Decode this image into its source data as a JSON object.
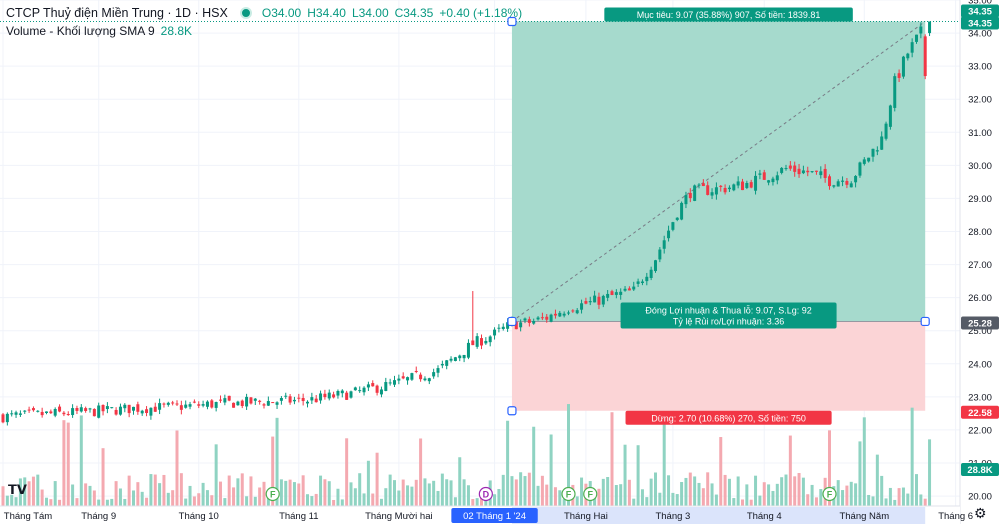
{
  "header": {
    "symbol_title": "CTCP Thuỷ điện Miền Trung · 1D · HSX",
    "ohlc": {
      "o": "O34.00",
      "h": "H34.40",
      "l": "L34.00",
      "c": "C34.35",
      "chg": "+0.40 (+1.18%)"
    },
    "volume_label": "Volume - Khối lượng SMA 9",
    "volume_value": "28.8K"
  },
  "colors": {
    "up": "#089981",
    "down": "#f23645",
    "vol_up": "#8fd3c2",
    "vol_down": "#f4a9b0",
    "profit_zone": "#a6dacd",
    "loss_zone": "#fbd4d6",
    "label_green": "#089981",
    "label_red": "#f23645",
    "axis_text": "#131722",
    "time_highlight": "#2962ff"
  },
  "icons": {
    "logo": "tradingview-logo-icon",
    "settings": "gear-icon"
  },
  "chart_data": {
    "type": "candlestick",
    "title": "CTCP Thuỷ điện Miền Trung · 1D · HSX",
    "ylim": [
      19.7,
      35.0
    ],
    "y_ticks": [
      "20.00",
      "21.00",
      "22.00",
      "23.00",
      "24.00",
      "25.00",
      "26.00",
      "27.00",
      "28.00",
      "29.00",
      "30.00",
      "31.00",
      "32.00",
      "33.00",
      "34.00",
      "35.00"
    ],
    "x_ticks": [
      "Tháng Tám",
      "Tháng 9",
      "Tháng 10",
      "Tháng 11",
      "Tháng Mười hai",
      "02 Tháng 1 '24",
      "Tháng Hai",
      "Tháng 3",
      "Tháng 4",
      "Tháng Năm",
      "Tháng 6"
    ],
    "x_tick_index": [
      0,
      22,
      45,
      68,
      91,
      113,
      134,
      154,
      175,
      198,
      219
    ],
    "highlight_x_tick": "02 Tháng 1 '24",
    "last_price": 34.35,
    "price_badges": [
      {
        "value": "34.35",
        "color": "#089981"
      },
      {
        "value": "34.35",
        "color": "#089981"
      },
      {
        "value": "25.28",
        "color": "#555b66"
      },
      {
        "value": "22.58",
        "color": "#f23645"
      },
      {
        "value": "28.8K",
        "color": "#089981"
      }
    ],
    "long_position": {
      "entry": 25.28,
      "target": 34.35,
      "stop": 22.58,
      "start_index": 117,
      "end_index": 212,
      "target_label": "Mục tiêu: 9.07 (35.88%) 907, Số tiền: 1839.81",
      "center_label_1": "Đóng Lợi nhuận & Thua lỗ: 9.07, S.Lg: 92",
      "center_label_2": "Tỷ lệ Rủi ro/Lợi nhuận: 3.36",
      "stop_label": "Dừng: 2.70 (10.68%) 270, Số tiền: 750"
    },
    "close_path": [
      [
        0,
        22.4
      ],
      [
        10,
        22.48
      ],
      [
        20,
        22.55
      ],
      [
        30,
        22.65
      ],
      [
        40,
        22.7
      ],
      [
        50,
        22.8
      ],
      [
        60,
        22.85
      ],
      [
        70,
        22.9
      ],
      [
        80,
        23.1
      ],
      [
        90,
        23.4
      ],
      [
        100,
        23.8
      ],
      [
        108,
        24.6
      ],
      [
        113,
        24.9
      ],
      [
        117,
        25.2
      ],
      [
        121,
        25.25
      ],
      [
        125,
        25.4
      ],
      [
        130,
        25.7
      ],
      [
        135,
        25.85
      ],
      [
        140,
        26.05
      ],
      [
        145,
        26.2
      ],
      [
        150,
        27.2
      ],
      [
        155,
        28.6
      ],
      [
        158,
        29.2
      ],
      [
        165,
        29.3
      ],
      [
        170,
        29.4
      ],
      [
        180,
        29.9
      ],
      [
        185,
        29.8
      ],
      [
        190,
        29.55
      ],
      [
        195,
        29.6
      ],
      [
        198,
        30.1
      ],
      [
        202,
        30.8
      ],
      [
        205,
        32.5
      ],
      [
        208,
        33.4
      ],
      [
        211,
        34.0
      ],
      [
        213,
        34.35
      ]
    ],
    "volume_markers": [
      {
        "index": 62,
        "letter": "F"
      },
      {
        "index": 111,
        "letter": "D"
      },
      {
        "index": 130,
        "letter": "F"
      },
      {
        "index": 135,
        "letter": "F"
      },
      {
        "index": 190,
        "letter": "F"
      }
    ]
  }
}
